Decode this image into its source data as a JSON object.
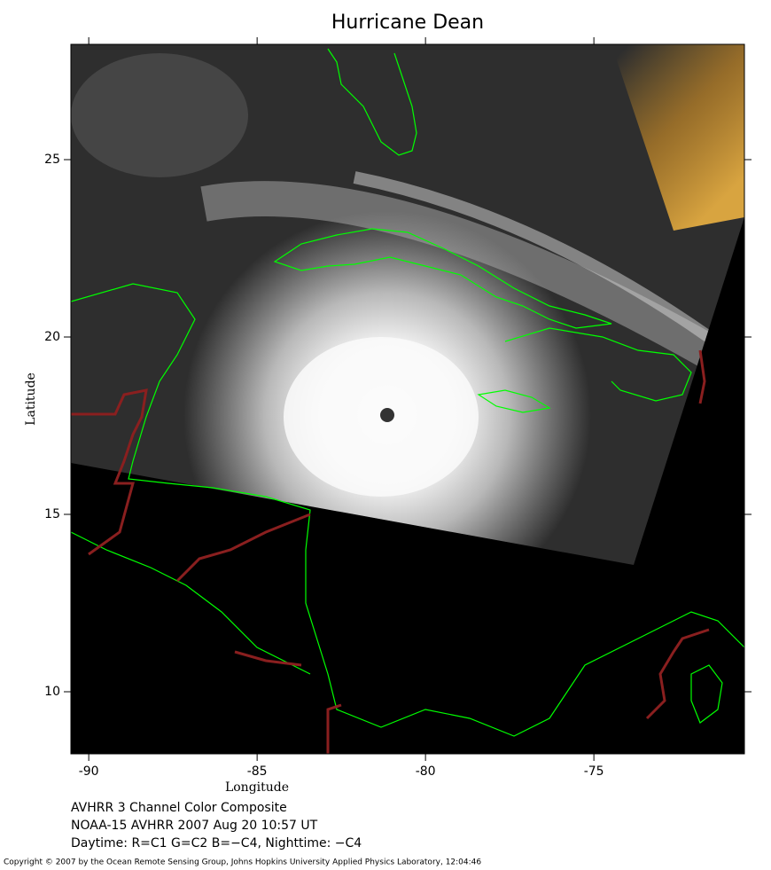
{
  "chart_data": {
    "type": "map",
    "title": "Hurricane Dean",
    "xlabel": "Longitude",
    "ylabel": "Latitude",
    "xlim": [
      -90.53,
      -70.53
    ],
    "ylim": [
      8.25,
      28.25
    ],
    "xticks": [
      -90,
      -85,
      -80,
      -75
    ],
    "yticks": [
      10,
      15,
      20,
      25
    ],
    "annotations": [
      "AVHRR 3 Channel Color Composite",
      "NOAA-15 AVHRR 2007 Aug 20 10:57 UT",
      "Daytime: R=C1 G=C2 B=−C4, Nighttime: −C4"
    ],
    "copyright": "Copyright © 2007 by the Ocean Remote Sensing Group, Johns Hopkins University Applied Physics Laboratory, 12:04:46"
  }
}
